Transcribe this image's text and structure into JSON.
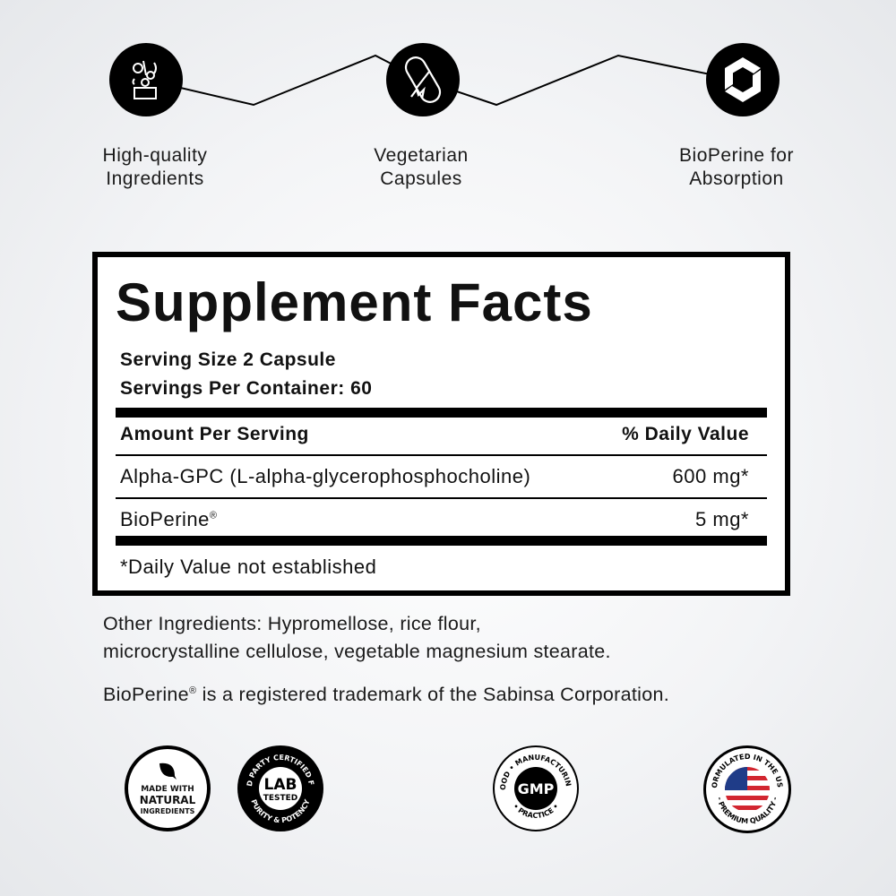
{
  "features": [
    {
      "icon": "vegetables-box-icon",
      "label_line1": "High-quality",
      "label_line2": "Ingredients"
    },
    {
      "icon": "capsule-icon",
      "label_line1": "Vegetarian",
      "label_line2": "Capsules"
    },
    {
      "icon": "bioperine-logo-icon",
      "label_line1": "BioPerine for",
      "label_line2": "Absorption"
    }
  ],
  "facts": {
    "title": "Supplement Facts",
    "serving_size": "Serving Size 2 Capsule",
    "servings_per_container": "Servings Per Container: 60",
    "header_left": "Amount Per Serving",
    "header_right": "% Daily Value",
    "rows": [
      {
        "name": "Alpha-GPC (L-alpha-glycerophosphocholine)",
        "amount": "600 mg*"
      },
      {
        "name": "BioPerine",
        "reg": "®",
        "amount": "5 mg*"
      }
    ],
    "footnote": "*Daily Value not established"
  },
  "other_ingredients_line1": "Other Ingredients: Hypromellose, rice flour,",
  "other_ingredients_line2": "microcrystalline cellulose, vegetable magnesium stearate.",
  "trademark_a": "BioPerine",
  "trademark_reg": "®",
  "trademark_b": " is a registered trademark of the Sabinsa Corporation.",
  "badges": [
    {
      "line1": "MADE WITH",
      "line2": "NATURAL",
      "line3": "INGREDIENTS"
    },
    {
      "ring_top": "3RD PARTY CERTIFIED FOR",
      "ring_bottom": "PURITY & POTENCY",
      "center1": "LAB",
      "center2": "TESTED"
    },
    {
      "ring_top": "GOOD • MANUFACTURING",
      "ring_bottom": "• PRACTICE •",
      "center": "GMP"
    },
    {
      "ring_top": "FORMULATED IN THE USA",
      "ring_bottom": "- PREMIUM QUALITY -"
    }
  ],
  "colors": {
    "flag_red": "#d22630",
    "flag_blue": "#1f3c88"
  }
}
